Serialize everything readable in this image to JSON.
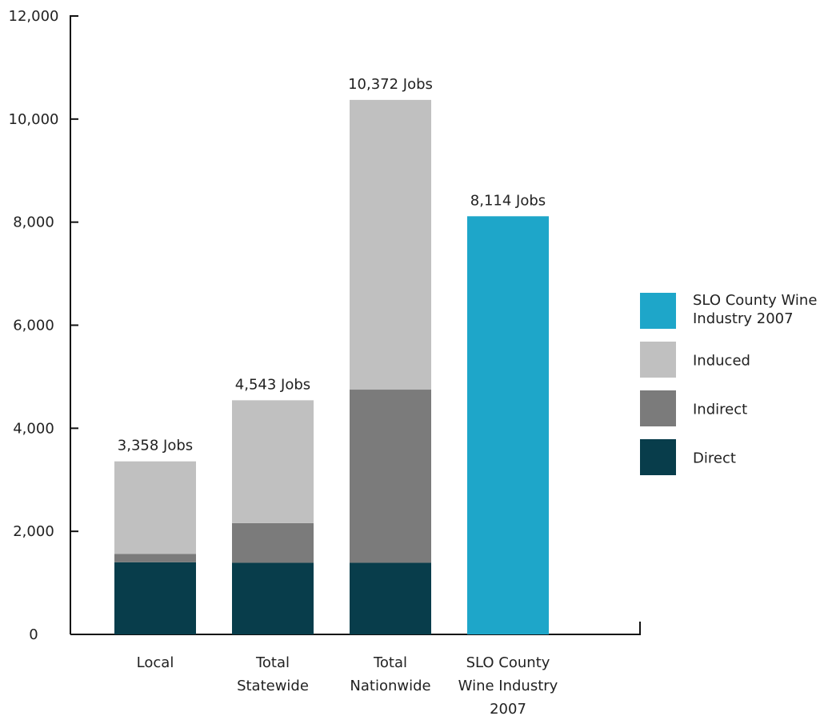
{
  "chart_data": {
    "type": "bar",
    "stacked": true,
    "categories": [
      [
        "Local"
      ],
      [
        "Total",
        "Statewide"
      ],
      [
        "Total",
        "Nationwide"
      ],
      [
        "SLO County",
        "Wine Industry",
        "2007"
      ]
    ],
    "series": [
      {
        "name": "Direct",
        "color": "#083d4b",
        "values": [
          1400,
          1390,
          1390,
          null
        ]
      },
      {
        "name": "Indirect",
        "color": "#7b7b7b",
        "values": [
          160,
          770,
          3360,
          null
        ]
      },
      {
        "name": "Induced",
        "color": "#c0c0c0",
        "values": [
          1798,
          2383,
          5622,
          null
        ]
      },
      {
        "name": "SLO County Wine Industry 2007",
        "legend_lines": [
          "SLO County Wine",
          "Industry 2007"
        ],
        "color": "#1ea6c9",
        "values": [
          null,
          null,
          null,
          8114
        ]
      }
    ],
    "totals": [
      "3,358 Jobs",
      "4,543 Jobs",
      "10,372 Jobs",
      "8,114 Jobs"
    ],
    "y_ticks": [
      "0",
      "2,000",
      "4,000",
      "6,000",
      "8,000",
      "10,000",
      "12,000"
    ],
    "ylim": [
      0,
      12000
    ],
    "xlabel": "",
    "ylabel": "",
    "title": "",
    "grid": false,
    "legend_position": "right",
    "legend_order": [
      3,
      2,
      1,
      0
    ]
  }
}
